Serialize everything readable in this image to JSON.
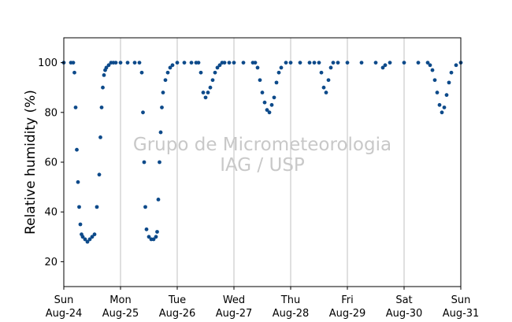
{
  "chart_data": {
    "type": "scatter",
    "ylabel": "Relative humidity (%)",
    "xlabel": "",
    "ylim": [
      10,
      110
    ],
    "yticks": [
      20,
      40,
      60,
      80,
      100
    ],
    "xlim": [
      "2025-08-24",
      "2025-08-31"
    ],
    "x_ticks": [
      {
        "date": "2025-08-24",
        "day": "Sun",
        "label": "Aug-24"
      },
      {
        "date": "2025-08-25",
        "day": "Mon",
        "label": "Aug-25"
      },
      {
        "date": "2025-08-26",
        "day": "Tue",
        "label": "Aug-26"
      },
      {
        "date": "2025-08-27",
        "day": "Wed",
        "label": "Aug-27"
      },
      {
        "date": "2025-08-28",
        "day": "Thu",
        "label": "Aug-28"
      },
      {
        "date": "2025-08-29",
        "day": "Fri",
        "label": "Aug-29"
      },
      {
        "date": "2025-08-30",
        "day": "Sat",
        "label": "Aug-30"
      },
      {
        "date": "2025-08-31",
        "day": "Sun",
        "label": "Aug-31"
      }
    ],
    "grid": "vertical",
    "marker_color": "#0d4a8a",
    "series": [
      {
        "x": [
          "2025-08-24 00:00",
          "2025-08-24 03:00",
          "2025-08-24 04:00",
          "2025-08-24 04:30",
          "2025-08-24 05:00",
          "2025-08-24 05:30",
          "2025-08-24 06:00",
          "2025-08-24 06:30",
          "2025-08-24 07:00",
          "2025-08-24 07:30",
          "2025-08-24 08:00",
          "2025-08-24 09:00",
          "2025-08-24 10:00",
          "2025-08-24 11:00",
          "2025-08-24 12:00",
          "2025-08-24 13:00",
          "2025-08-24 14:00",
          "2025-08-24 15:00",
          "2025-08-24 15:30",
          "2025-08-24 16:00",
          "2025-08-24 16:30",
          "2025-08-24 17:00",
          "2025-08-24 17:30",
          "2025-08-24 18:00",
          "2025-08-24 19:00",
          "2025-08-24 20:00",
          "2025-08-24 21:00",
          "2025-08-24 22:00",
          "2025-08-25 00:00",
          "2025-08-25 03:00",
          "2025-08-25 06:00",
          "2025-08-25 08:00",
          "2025-08-25 09:00",
          "2025-08-25 09:30",
          "2025-08-25 10:00",
          "2025-08-25 10:30",
          "2025-08-25 11:00",
          "2025-08-25 12:00",
          "2025-08-25 13:00",
          "2025-08-25 14:00",
          "2025-08-25 15:00",
          "2025-08-25 15:30",
          "2025-08-25 16:00",
          "2025-08-25 16:30",
          "2025-08-25 17:00",
          "2025-08-25 17:30",
          "2025-08-25 18:00",
          "2025-08-25 19:00",
          "2025-08-25 20:00",
          "2025-08-25 21:00",
          "2025-08-25 22:00",
          "2025-08-26 00:00",
          "2025-08-26 03:00",
          "2025-08-26 06:00",
          "2025-08-26 08:00",
          "2025-08-26 09:00",
          "2025-08-26 10:00",
          "2025-08-26 11:00",
          "2025-08-26 12:00",
          "2025-08-26 13:00",
          "2025-08-26 14:00",
          "2025-08-26 15:00",
          "2025-08-26 16:00",
          "2025-08-26 17:00",
          "2025-08-26 18:00",
          "2025-08-26 19:00",
          "2025-08-26 20:00",
          "2025-08-26 22:00",
          "2025-08-27 00:00",
          "2025-08-27 04:00",
          "2025-08-27 08:00",
          "2025-08-27 09:00",
          "2025-08-27 10:00",
          "2025-08-27 11:00",
          "2025-08-27 12:00",
          "2025-08-27 13:00",
          "2025-08-27 14:00",
          "2025-08-27 15:00",
          "2025-08-27 16:00",
          "2025-08-27 17:00",
          "2025-08-27 18:00",
          "2025-08-27 19:00",
          "2025-08-27 20:00",
          "2025-08-27 22:00",
          "2025-08-28 00:00",
          "2025-08-28 04:00",
          "2025-08-28 08:00",
          "2025-08-28 10:00",
          "2025-08-28 12:00",
          "2025-08-28 13:00",
          "2025-08-28 14:00",
          "2025-08-28 15:00",
          "2025-08-28 16:00",
          "2025-08-28 17:00",
          "2025-08-28 18:00",
          "2025-08-28 20:00",
          "2025-08-29 00:00",
          "2025-08-29 06:00",
          "2025-08-29 12:00",
          "2025-08-29 15:00",
          "2025-08-29 16:00",
          "2025-08-29 18:00",
          "2025-08-30 00:00",
          "2025-08-30 06:00",
          "2025-08-30 10:00",
          "2025-08-30 11:00",
          "2025-08-30 12:00",
          "2025-08-30 13:00",
          "2025-08-30 14:00",
          "2025-08-30 15:00",
          "2025-08-30 16:00",
          "2025-08-30 17:00",
          "2025-08-30 18:00",
          "2025-08-30 19:00",
          "2025-08-30 20:00",
          "2025-08-30 22:00",
          "2025-08-31 00:00"
        ],
        "y": [
          100,
          100,
          100,
          96,
          82,
          65,
          52,
          42,
          35,
          31,
          30,
          29,
          28,
          29,
          30,
          31,
          42,
          55,
          70,
          82,
          90,
          95,
          97,
          98,
          99,
          100,
          100,
          100,
          100,
          100,
          100,
          100,
          96,
          80,
          60,
          42,
          33,
          30,
          29,
          29,
          30,
          32,
          45,
          60,
          72,
          82,
          88,
          93,
          96,
          98,
          99,
          100,
          100,
          100,
          100,
          100,
          96,
          88,
          86,
          88,
          90,
          93,
          96,
          98,
          99,
          100,
          100,
          100,
          100,
          100,
          100,
          100,
          98,
          93,
          88,
          84,
          81,
          80,
          83,
          86,
          92,
          96,
          98,
          100,
          100,
          100,
          100,
          100,
          100,
          96,
          90,
          88,
          93,
          98,
          100,
          100,
          100,
          100,
          100,
          98,
          99,
          100,
          100,
          100,
          100,
          99,
          97,
          93,
          88,
          83,
          80,
          82,
          87,
          92,
          96,
          99,
          100
        ]
      }
    ]
  },
  "watermark": {
    "line1": "Grupo de Micrometeorologia",
    "line2": "IAG / USP"
  }
}
